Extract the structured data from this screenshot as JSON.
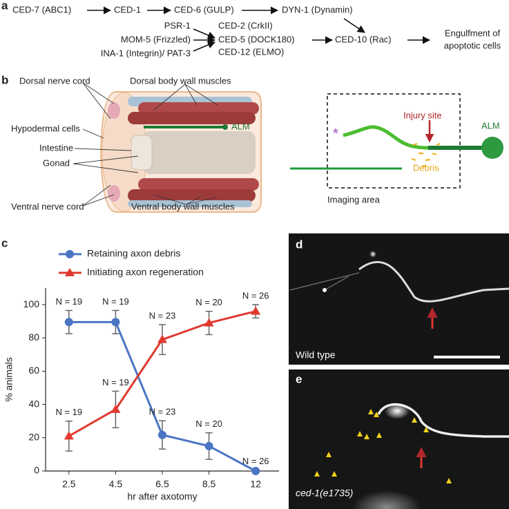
{
  "panel_labels": [
    "a",
    "b",
    "c",
    "d",
    "e"
  ],
  "pathway": {
    "row1": [
      "CED-7 (ABC1)",
      "CED-1",
      "CED-6 (GULP)",
      "DYN-1 (Dynamin)"
    ],
    "receptors": [
      "PSR-1",
      "MOM-5 (Frizzled)",
      "INA-1 (Integrin)/ PAT-3"
    ],
    "adaptors": [
      "CED-2 (CrkII)",
      "CED-5 (DOCK180)",
      "CED-12 (ELMO)"
    ],
    "gtpase": "CED-10 (Rac)",
    "outcome": [
      "Engulfment of",
      "apoptotic cells"
    ]
  },
  "anatomy": {
    "labels": [
      "Dorsal nerve cord",
      "Dorsal body wall muscles",
      "Hypodermal cells",
      "Intestine",
      "Gonad",
      "ALM",
      "Ventral nerve cord",
      "Ventral body wall muscles"
    ]
  },
  "imaging": {
    "labels": [
      "Injury site",
      "ALM",
      "Debris",
      "Imaging area"
    ]
  },
  "chart_data": {
    "type": "line",
    "categories": [
      "2.5",
      "4.5",
      "6.5",
      "8.5",
      "12"
    ],
    "xlabel": "hr after axotomy",
    "ylabel": "% animals",
    "ylim": [
      0,
      110
    ],
    "yticks": [
      0,
      20,
      40,
      60,
      80,
      100
    ],
    "legend": "top",
    "series": [
      {
        "name": "Retaining axon debris",
        "color": "#4a74c4",
        "marker": "circle",
        "values": [
          89.5,
          89.5,
          21.7,
          15,
          0
        ],
        "errors": [
          7,
          7,
          8.5,
          8,
          0.5
        ],
        "annotations": [
          "N = 19",
          "N = 19",
          "N = 23",
          "N = 20",
          "N = 26"
        ]
      },
      {
        "name": "Initiating axon regeneration",
        "color": "#e0392f",
        "marker": "triangle",
        "values": [
          21,
          37,
          79,
          89,
          96
        ],
        "errors": [
          9,
          11,
          9,
          7,
          4
        ],
        "annotations": [
          "N = 19",
          "N = 19",
          "N = 23",
          "N = 20",
          "N = 26"
        ]
      }
    ]
  },
  "micrographs": [
    "Wild type",
    "ced-1(e1735)"
  ]
}
